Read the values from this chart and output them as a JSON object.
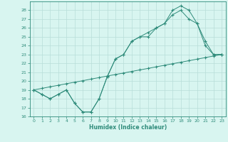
{
  "line1_x": [
    0,
    1,
    2,
    3,
    4,
    5,
    6,
    7,
    8,
    9,
    10,
    11,
    12,
    13,
    14,
    15,
    16,
    17,
    18,
    19,
    20,
    21,
    22,
    23
  ],
  "line1_y": [
    19,
    18.5,
    18,
    18.5,
    19,
    17.5,
    16.5,
    16.5,
    18,
    20.5,
    22.5,
    23,
    24.5,
    25,
    25,
    26,
    26.5,
    28,
    28.5,
    28,
    26.5,
    24,
    23,
    23
  ],
  "line2_x": [
    0,
    1,
    2,
    3,
    4,
    5,
    6,
    7,
    8,
    9,
    10,
    11,
    12,
    13,
    14,
    15,
    16,
    17,
    18,
    19,
    20,
    21,
    22,
    23
  ],
  "line2_y": [
    19,
    18.5,
    18,
    18.5,
    19,
    17.5,
    16.5,
    16.5,
    18,
    20.5,
    22.5,
    23,
    24.5,
    25,
    25.5,
    26,
    26.5,
    27.5,
    28,
    27,
    26.5,
    24.5,
    23,
    23
  ],
  "line3_x": [
    0,
    1,
    2,
    3,
    4,
    5,
    6,
    7,
    8,
    9,
    10,
    11,
    12,
    13,
    14,
    15,
    16,
    17,
    18,
    19,
    20,
    21,
    22,
    23
  ],
  "line3_y": [
    19,
    19.17,
    19.35,
    19.52,
    19.7,
    19.87,
    20.04,
    20.22,
    20.39,
    20.57,
    20.74,
    20.91,
    21.09,
    21.26,
    21.43,
    21.61,
    21.78,
    21.96,
    22.13,
    22.3,
    22.48,
    22.65,
    22.83,
    23
  ],
  "color": "#2e8b7a",
  "bg_color": "#d8f5f0",
  "grid_color": "#b8ddd8",
  "xlabel": "Humidex (Indice chaleur)",
  "ylim": [
    16,
    29
  ],
  "xlim": [
    -0.5,
    23.5
  ],
  "yticks": [
    16,
    17,
    18,
    19,
    20,
    21,
    22,
    23,
    24,
    25,
    26,
    27,
    28
  ],
  "xticks": [
    0,
    1,
    2,
    3,
    4,
    5,
    6,
    7,
    8,
    9,
    10,
    11,
    12,
    13,
    14,
    15,
    16,
    17,
    18,
    19,
    20,
    21,
    22,
    23
  ]
}
